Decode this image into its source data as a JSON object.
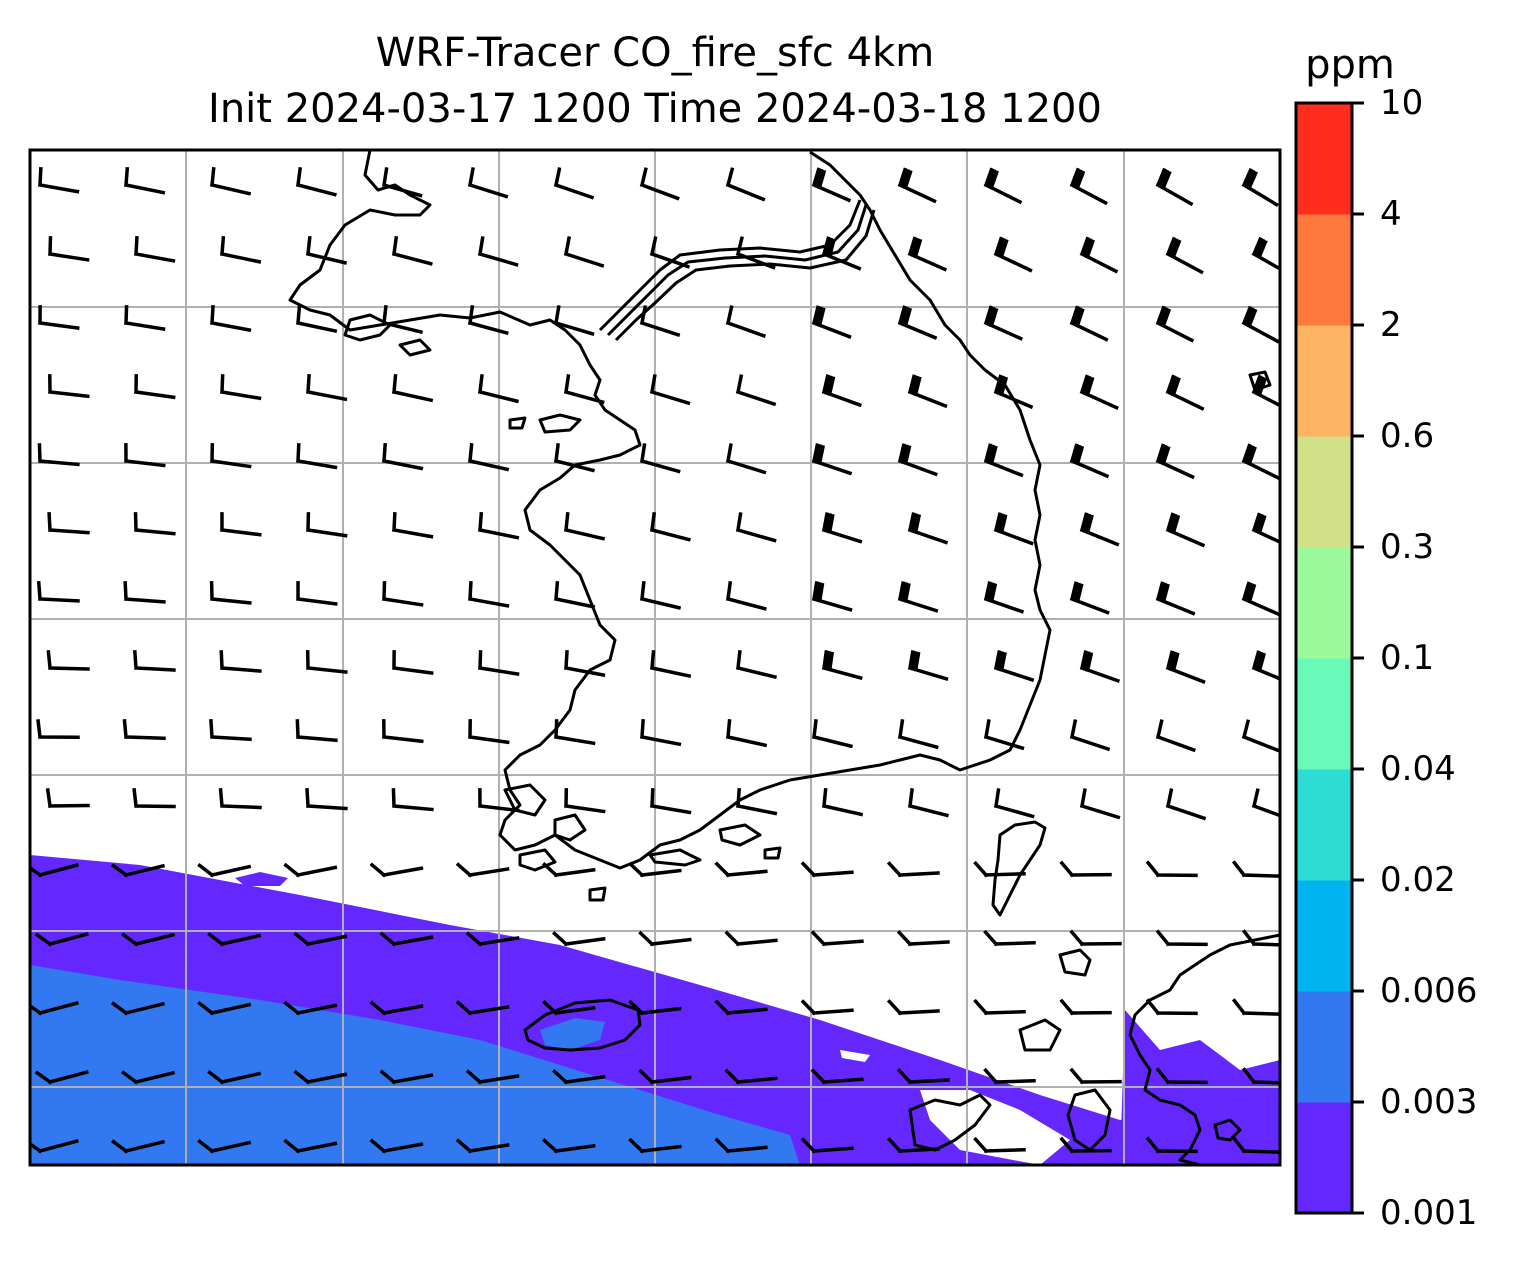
{
  "title_line1": "WRF-Tracer CO_fire_sfc 4km",
  "title_line2": "Init 2024-03-17 1200 Time 2024-03-18 1200",
  "colorbar": {
    "unit": "ppm",
    "levels": [
      "0.001",
      "0.003",
      "0.006",
      "0.02",
      "0.04",
      "0.1",
      "0.3",
      "0.6",
      "2",
      "4",
      "10"
    ],
    "colors": [
      "#6428ff",
      "#3278f0",
      "#00b4f0",
      "#2ddcd2",
      "#69fab9",
      "#9bfa9b",
      "#d2e187",
      "#ffb464",
      "#ff783c",
      "#ff2d1e"
    ]
  },
  "map": {
    "field": "CO_fire_sfc",
    "grid_lines": true,
    "coastline_color": "#000000",
    "grid_color": "#b0b0b0"
  }
}
